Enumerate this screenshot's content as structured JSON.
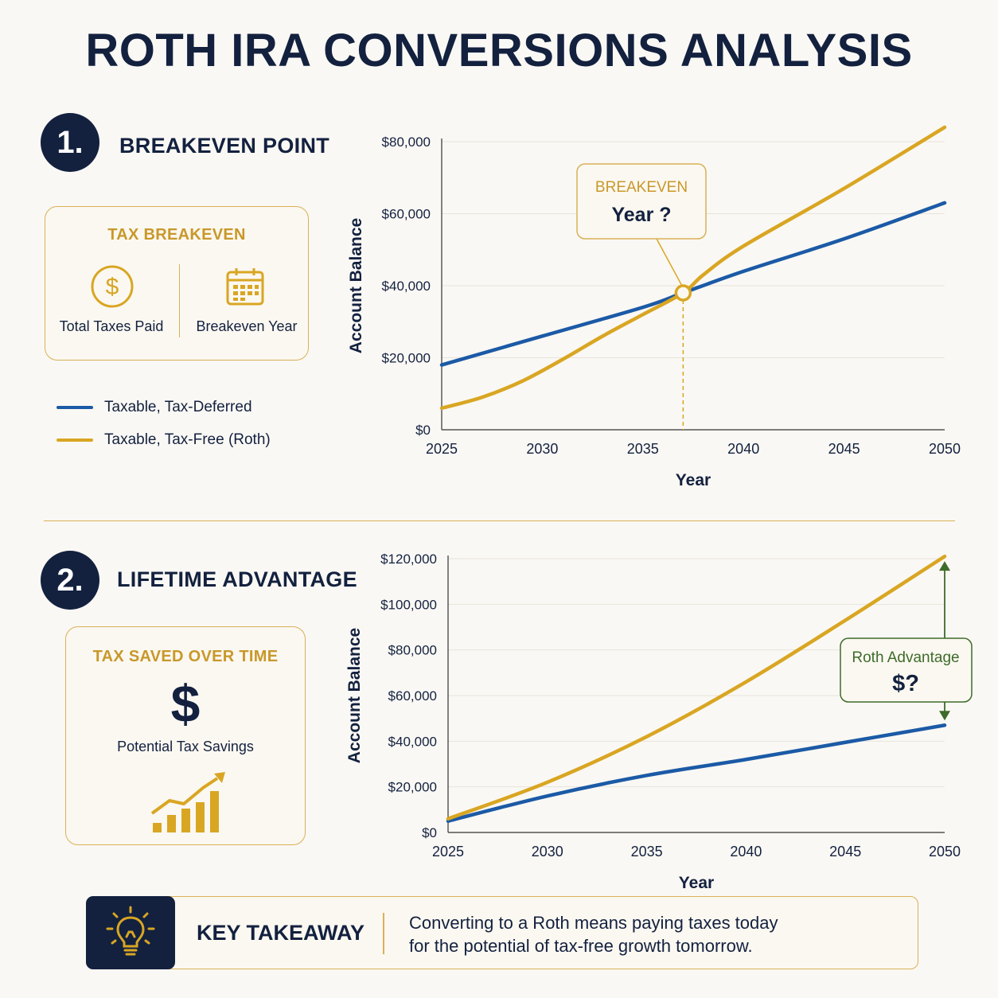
{
  "title": "ROTH IRA CONVERSIONS ANALYSIS",
  "section1": {
    "number": "1.",
    "heading": "BREAKEVEN POINT",
    "card": {
      "title": "TAX BREAKEVEN",
      "left_icon": "dollar-circle-icon",
      "left_label": "Total Taxes Paid",
      "right_icon": "calendar-icon",
      "right_label": "Breakeven Year"
    },
    "legend": [
      {
        "label": "Taxable, Tax-Deferred",
        "color": "#1b5aa6"
      },
      {
        "label": "Taxable, Tax-Free (Roth)",
        "color": "#d9a623"
      }
    ]
  },
  "section2": {
    "number": "2.",
    "heading": "LIFETIME ADVANTAGE",
    "card": {
      "title": "TAX SAVED OVER TIME",
      "big_symbol": "$",
      "label": "Potential Tax Savings",
      "icon": "rising-bar-chart-icon"
    }
  },
  "takeaway": {
    "icon": "lightbulb-icon",
    "title": "KEY TAKEAWAY",
    "text_line1": "Converting to a Roth means paying taxes today",
    "text_line2": "for the potential of tax-free growth tomorrow."
  },
  "colors": {
    "navy": "#13213f",
    "gold": "#d9a623",
    "blue": "#1b5aa6",
    "green": "#3e6b2a"
  },
  "chart_data": [
    {
      "type": "line",
      "xlabel": "Year",
      "ylabel": "Account Balance",
      "xlim": [
        2025,
        2050
      ],
      "ylim": [
        0,
        80000
      ],
      "xticks": [
        "2025",
        "2030",
        "2035",
        "2040",
        "2045",
        "2050"
      ],
      "yticks": [
        "$0",
        "$20,000",
        "$40,000",
        "$60,000",
        "$80,000"
      ],
      "grid": true,
      "series": [
        {
          "name": "Taxable, Tax-Deferred",
          "color": "#1b5aa6",
          "x": [
            2025,
            2030,
            2035,
            2037,
            2040,
            2045,
            2050
          ],
          "y": [
            18000,
            26000,
            34000,
            38000,
            44000,
            53000,
            63000
          ]
        },
        {
          "name": "Taxable, Tax-Free (Roth)",
          "color": "#d9a623",
          "x": [
            2025,
            2027,
            2029,
            2031,
            2033,
            2035,
            2037,
            2038,
            2040,
            2045,
            2050
          ],
          "y": [
            6000,
            9000,
            13500,
            19500,
            26000,
            32000,
            38000,
            43000,
            51000,
            67000,
            84000
          ]
        }
      ],
      "annotation": {
        "title": "BREAKEVEN",
        "value": "Year ?",
        "x": 2037,
        "y": 38000
      }
    },
    {
      "type": "line",
      "xlabel": "Year",
      "ylabel": "Account Balance",
      "xlim": [
        2025,
        2050
      ],
      "ylim": [
        0,
        120000
      ],
      "xticks": [
        "2025",
        "2030",
        "2035",
        "2040",
        "2045",
        "2050"
      ],
      "yticks": [
        "$0",
        "$20,000",
        "$40,000",
        "$60,000",
        "$80,000",
        "$100,000",
        "$120,000"
      ],
      "grid": true,
      "series": [
        {
          "name": "Taxable, Tax-Deferred",
          "color": "#1b5aa6",
          "x": [
            2025,
            2030,
            2035,
            2040,
            2045,
            2050
          ],
          "y": [
            5000,
            16000,
            25000,
            32000,
            39500,
            47000
          ]
        },
        {
          "name": "Taxable, Tax-Free (Roth)",
          "color": "#d9a623",
          "x": [
            2025,
            2030,
            2035,
            2040,
            2045,
            2050
          ],
          "y": [
            6000,
            22000,
            42000,
            66000,
            93000,
            121000
          ]
        }
      ],
      "annotation": {
        "title": "Roth Advantage",
        "value": "$?",
        "x": 2050
      }
    }
  ]
}
